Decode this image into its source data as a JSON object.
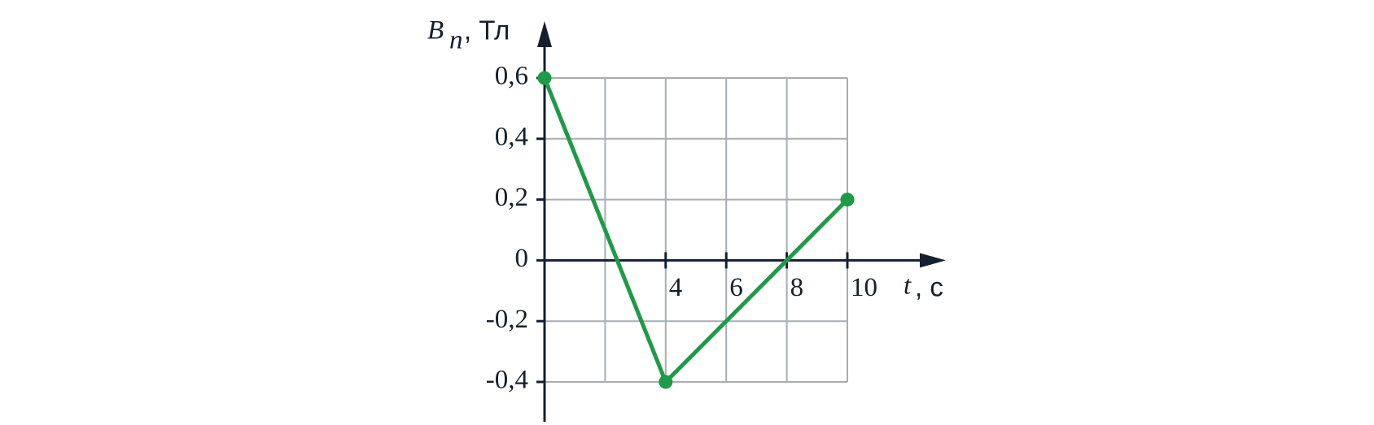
{
  "chart_data": {
    "type": "line",
    "ylabel": {
      "symbol": "B",
      "subscript": "n",
      "unit": ", Тл"
    },
    "xlabel": {
      "symbol": "t",
      "unit": ", с"
    },
    "x": [
      0,
      4,
      10
    ],
    "series": [
      {
        "color": "#1f9a48",
        "values": [
          0.6,
          -0.4,
          0.2
        ]
      }
    ],
    "xlim": [
      0,
      10
    ],
    "ylim": [
      -0.4,
      0.6
    ],
    "xticks": [
      4,
      6,
      8,
      10
    ],
    "xgrid": [
      2,
      4,
      6,
      8,
      10
    ],
    "yticks": [
      {
        "value": -0.4,
        "label": "-0,4"
      },
      {
        "value": -0.2,
        "label": "-0,2"
      },
      0,
      {
        "value": 0.2,
        "label": "0,2"
      },
      {
        "value": 0.4,
        "label": "0,4"
      },
      {
        "value": 0.6,
        "label": "0,6"
      }
    ],
    "grid": true
  }
}
